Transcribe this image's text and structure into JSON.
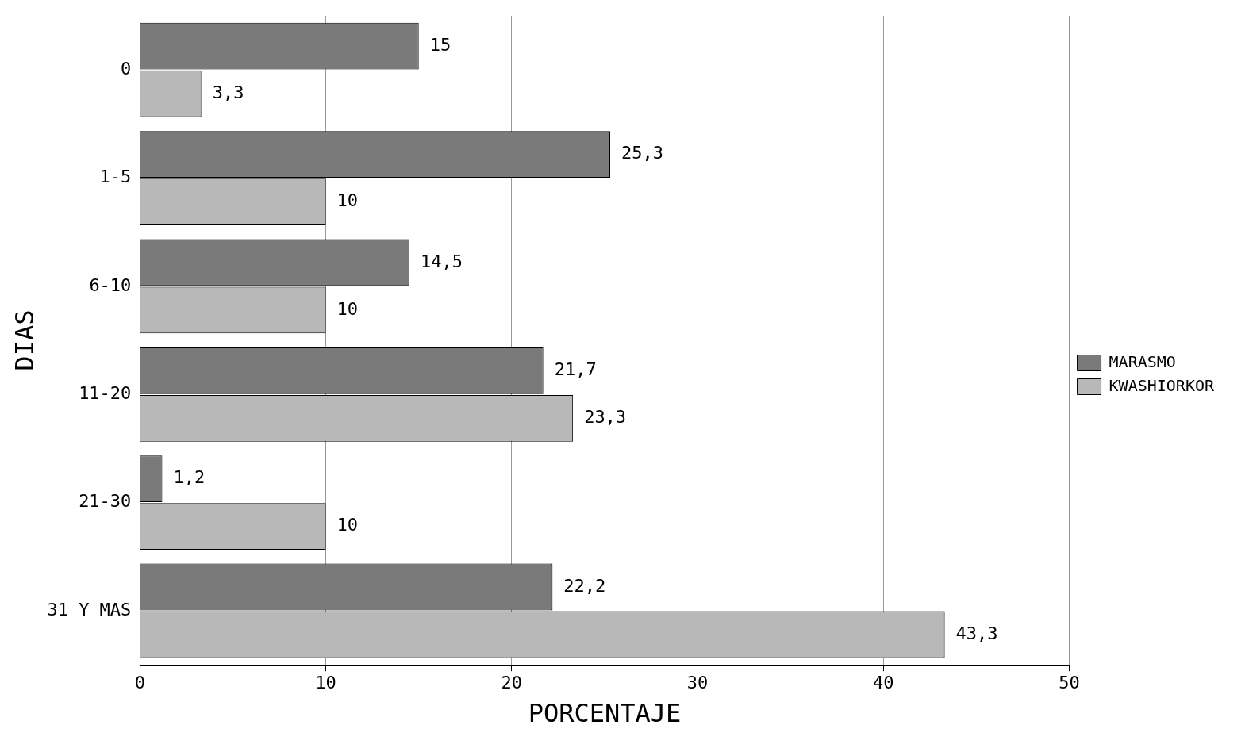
{
  "chart_data": {
    "type": "bar",
    "orientation": "horizontal",
    "xlabel": "PORCENTAJE",
    "ylabel": "DIAS",
    "categories": [
      "0",
      "1-5",
      "6-10",
      "11-20",
      "21-30",
      "31 Y MAS"
    ],
    "series": [
      {
        "name": "MARASMO",
        "color": "#7a7a7a",
        "values": [
          15,
          25.3,
          14.5,
          21.7,
          1.2,
          22.2
        ],
        "value_labels": [
          "15",
          "25,3",
          "14,5",
          "21,7",
          "1,2",
          "22,2"
        ]
      },
      {
        "name": "KWASHIORKOR",
        "color": "#b8b8b8",
        "values": [
          3.3,
          10,
          10,
          23.3,
          10,
          43.3
        ],
        "value_labels": [
          "3,3",
          "10",
          "10",
          "23,3",
          "10",
          "43,3"
        ]
      }
    ],
    "xlim": [
      0,
      50
    ],
    "xticks": [
      0,
      10,
      20,
      30,
      40,
      50
    ],
    "grid": "x",
    "legend": "right"
  }
}
